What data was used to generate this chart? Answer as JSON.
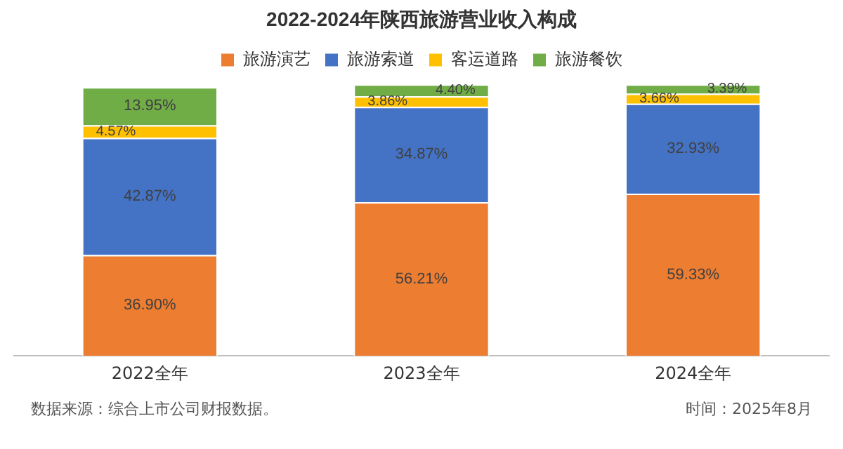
{
  "chart_data": {
    "type": "bar",
    "title": "2022-2024年陕西旅游营业收入构成",
    "categories": [
      "2022全年",
      "2023全年",
      "2024全年"
    ],
    "stacked": true,
    "legend": "top",
    "grid": false,
    "series": [
      {
        "name": "旅游演艺",
        "color": "#ed7d31",
        "values": [
          36.9,
          56.21,
          59.33
        ],
        "value_labels": [
          "36.90%",
          "56.21%",
          "59.33%"
        ]
      },
      {
        "name": "旅游索道",
        "color": "#4472c4",
        "values": [
          42.87,
          34.87,
          32.93
        ],
        "value_labels": [
          "42.87%",
          "34.87%",
          "32.93%"
        ]
      },
      {
        "name": "客运道路",
        "color": "#ffc000",
        "values": [
          4.57,
          3.86,
          3.66
        ],
        "value_labels": [
          "4.57%",
          "3.86%",
          "3.66%"
        ]
      },
      {
        "name": "旅游餐饮",
        "color": "#70ad47",
        "values": [
          13.95,
          4.4,
          3.39
        ],
        "value_labels": [
          "13.95%",
          "4.40%",
          "3.39%"
        ]
      }
    ],
    "annotations": [
      "数据来源：综合上市公司财报数据。",
      "时间：2025年8月"
    ]
  }
}
